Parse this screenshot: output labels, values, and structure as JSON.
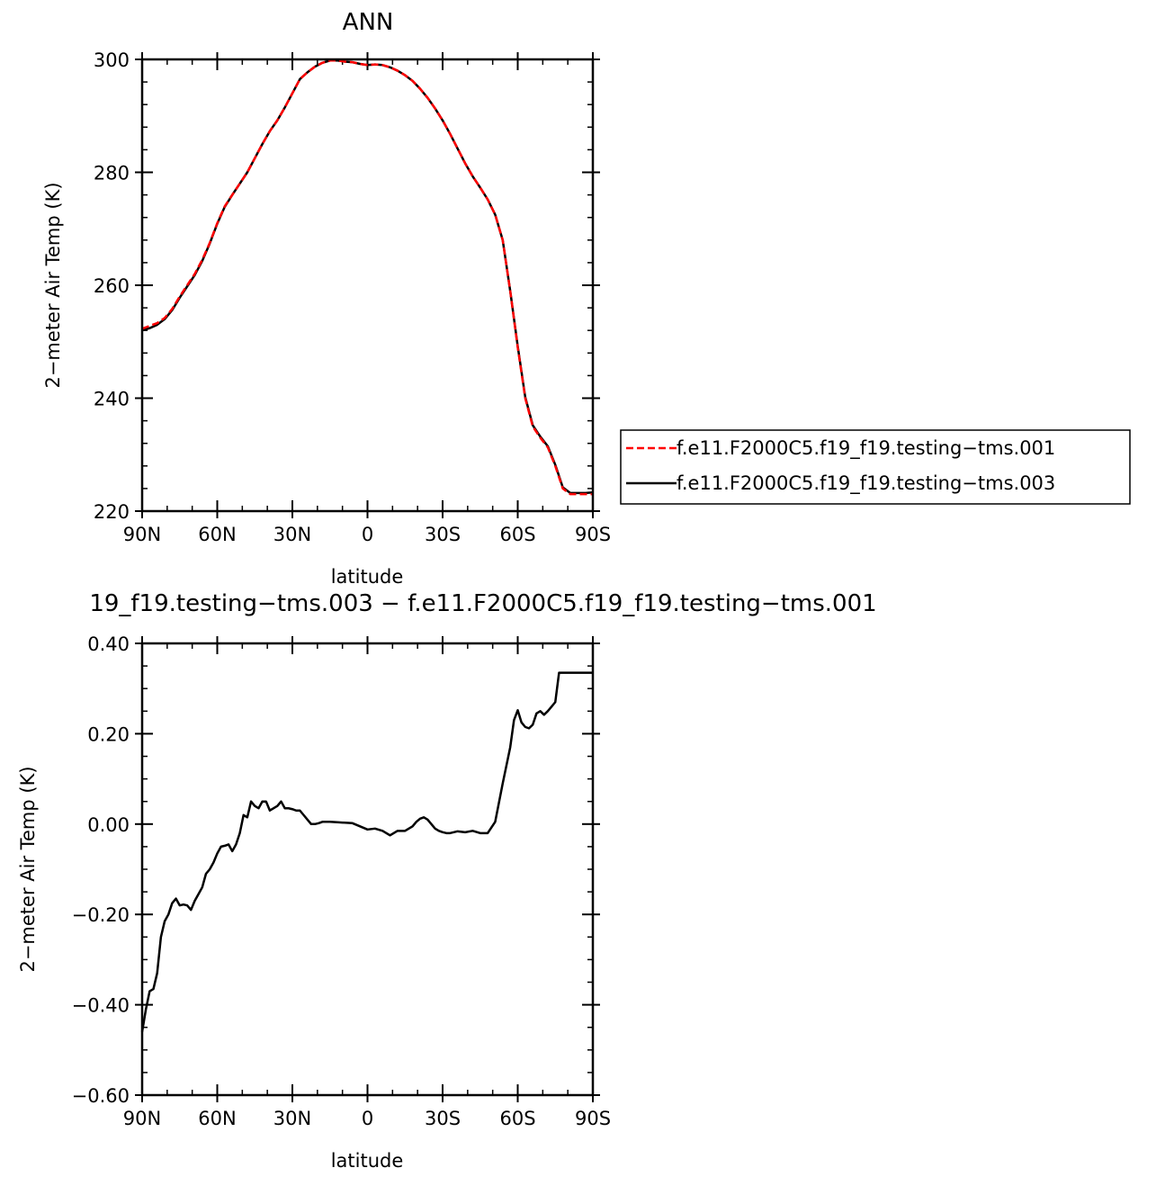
{
  "chart_data": [
    {
      "type": "line",
      "title": "ANN",
      "xlabel": "latitude",
      "ylabel": "2−meter Air Temp (K)",
      "xlim": [
        90,
        -90
      ],
      "ylim": [
        220,
        300
      ],
      "xticks": [
        90,
        60,
        30,
        0,
        -30,
        -60,
        -90
      ],
      "xtick_labels": [
        "90N",
        "60N",
        "30N",
        "0",
        "30S",
        "60S",
        "90S"
      ],
      "yticks": [
        220,
        240,
        260,
        280,
        300
      ],
      "ytick_labels": [
        "220",
        "240",
        "260",
        "280",
        "300"
      ],
      "legend": "right",
      "series": [
        {
          "name": "f.e11.F2000C5.f19_f19.testing−tms.001",
          "color": "#ff0000",
          "style": "dashed",
          "x": [
            90,
            87,
            84,
            81,
            78,
            75,
            72,
            69,
            66,
            63,
            60,
            57,
            54,
            51,
            48,
            45,
            42,
            39,
            36,
            33,
            30,
            27,
            24,
            21,
            18,
            15,
            12,
            9,
            6,
            3,
            0,
            -3,
            -6,
            -9,
            -12,
            -15,
            -18,
            -21,
            -24,
            -27,
            -30,
            -33,
            -36,
            -39,
            -42,
            -45,
            -48,
            -51,
            -54,
            -57,
            -60,
            -63,
            -66,
            -69,
            -72,
            -75,
            -78,
            -81,
            -84,
            -87,
            -90
          ],
          "y": [
            252.3,
            252.8,
            253.3,
            254.2,
            255.8,
            258.0,
            260.0,
            262.0,
            264.5,
            267.5,
            271.0,
            274.0,
            276.0,
            278.0,
            280.0,
            282.5,
            285.0,
            287.3,
            289.2,
            291.5,
            294.0,
            296.5,
            297.7,
            298.7,
            299.4,
            299.8,
            299.8,
            299.6,
            299.5,
            299.2,
            299.0,
            299.1,
            299.0,
            298.6,
            298.0,
            297.2,
            296.2,
            294.8,
            293.2,
            291.3,
            289.2,
            286.8,
            284.2,
            281.6,
            279.3,
            277.3,
            275.2,
            272.5,
            268.0,
            259.0,
            249.0,
            240.0,
            235.0,
            233.0,
            231.3,
            228.0,
            224.0,
            223.0,
            223.0,
            223.0,
            223.0
          ]
        },
        {
          "name": "f.e11.F2000C5.f19_f19.testing−tms.003",
          "color": "#000000",
          "style": "solid",
          "x": [
            90,
            87,
            84,
            81,
            78,
            75,
            72,
            69,
            66,
            63,
            60,
            57,
            54,
            51,
            48,
            45,
            42,
            39,
            36,
            33,
            30,
            27,
            24,
            21,
            18,
            15,
            12,
            9,
            6,
            3,
            0,
            -3,
            -6,
            -9,
            -12,
            -15,
            -18,
            -21,
            -24,
            -27,
            -30,
            -33,
            -36,
            -39,
            -42,
            -45,
            -48,
            -51,
            -54,
            -57,
            -60,
            -63,
            -66,
            -69,
            -72,
            -75,
            -78,
            -81,
            -84,
            -87,
            -90
          ],
          "y": [
            252.0,
            252.4,
            253.0,
            254.0,
            255.6,
            257.8,
            259.8,
            261.8,
            264.3,
            267.4,
            270.9,
            273.9,
            276.0,
            278.0,
            280.0,
            282.5,
            285.0,
            287.3,
            289.2,
            291.5,
            294.0,
            296.5,
            297.7,
            298.7,
            299.4,
            299.8,
            299.8,
            299.6,
            299.5,
            299.2,
            299.0,
            299.1,
            299.0,
            298.6,
            298.0,
            297.2,
            296.2,
            294.8,
            293.2,
            291.3,
            289.2,
            286.8,
            284.2,
            281.6,
            279.3,
            277.3,
            275.2,
            272.5,
            268.0,
            259.0,
            249.2,
            240.2,
            235.2,
            233.2,
            231.5,
            228.2,
            224.2,
            223.2,
            223.2,
            223.2,
            223.3
          ]
        }
      ]
    },
    {
      "type": "line",
      "title": "19_f19.testing−tms.003 − f.e11.F2000C5.f19_f19.testing−tms.001",
      "xlabel": "latitude",
      "ylabel": "2−meter Air Temp (K)",
      "xlim": [
        90,
        -90
      ],
      "ylim": [
        -0.6,
        0.4
      ],
      "xticks": [
        90,
        60,
        30,
        0,
        -30,
        -60,
        -90
      ],
      "xtick_labels": [
        "90N",
        "60N",
        "30N",
        "0",
        "30S",
        "60S",
        "90S"
      ],
      "yticks": [
        -0.6,
        -0.4,
        -0.2,
        0.0,
        0.2,
        0.4
      ],
      "ytick_labels": [
        "−0.60",
        "−0.40",
        "−0.20",
        "0.00",
        "0.20",
        "0.40"
      ],
      "series": [
        {
          "color": "#000000",
          "style": "solid",
          "x": [
            90,
            88.5,
            87,
            85.5,
            84,
            82.5,
            81,
            79.5,
            78,
            76.5,
            75,
            73.5,
            72,
            70.5,
            69,
            67.5,
            66,
            64.5,
            63,
            61.5,
            60,
            58.5,
            57,
            55.5,
            54,
            52.5,
            51,
            49.5,
            48,
            46.5,
            45,
            43.5,
            42,
            40.5,
            39,
            37.5,
            36,
            34.5,
            33,
            31.5,
            30,
            28.5,
            27,
            25.5,
            24,
            22.5,
            21,
            19.5,
            18,
            15,
            12,
            9,
            6,
            3,
            0,
            -3,
            -6,
            -9,
            -12,
            -15,
            -18,
            -19.5,
            -21,
            -22.5,
            -24,
            -25.5,
            -27,
            -28.5,
            -30,
            -31.5,
            -33,
            -34.5,
            -36,
            -39,
            -42,
            -45,
            -48,
            -51,
            -54,
            -57,
            -58.5,
            -60,
            -61.5,
            -63,
            -64.5,
            -66,
            -67.5,
            -69,
            -70.5,
            -72,
            -73.5,
            -75,
            -76.5,
            -78,
            -79.5,
            -81,
            -82.5,
            -84,
            -85.5,
            -87,
            -88.5,
            -90
          ],
          "y": [
            -0.46,
            -0.41,
            -0.37,
            -0.365,
            -0.33,
            -0.25,
            -0.215,
            -0.2,
            -0.175,
            -0.165,
            -0.18,
            -0.178,
            -0.18,
            -0.19,
            -0.17,
            -0.155,
            -0.14,
            -0.11,
            -0.1,
            -0.085,
            -0.065,
            -0.05,
            -0.048,
            -0.045,
            -0.06,
            -0.045,
            -0.02,
            0.02,
            0.015,
            0.05,
            0.04,
            0.035,
            0.05,
            0.05,
            0.03,
            0.035,
            0.04,
            0.05,
            0.035,
            0.035,
            0.033,
            0.03,
            0.03,
            0.02,
            0.01,
            0.0,
            0.0,
            0.002,
            0.005,
            0.005,
            0.004,
            0.003,
            0.002,
            -0.005,
            -0.012,
            -0.01,
            -0.015,
            -0.025,
            -0.015,
            -0.015,
            -0.005,
            0.005,
            0.012,
            0.015,
            0.01,
            0.0,
            -0.01,
            -0.015,
            -0.018,
            -0.02,
            -0.02,
            -0.018,
            -0.016,
            -0.018,
            -0.015,
            -0.02,
            -0.02,
            0.005,
            0.09,
            0.17,
            0.23,
            0.252,
            0.225,
            0.215,
            0.212,
            0.22,
            0.245,
            0.25,
            0.242,
            0.25,
            0.26,
            0.27,
            0.335,
            0.335,
            0.335,
            0.335,
            0.335,
            0.335,
            0.335,
            0.335,
            0.335,
            0.335
          ]
        }
      ]
    }
  ]
}
